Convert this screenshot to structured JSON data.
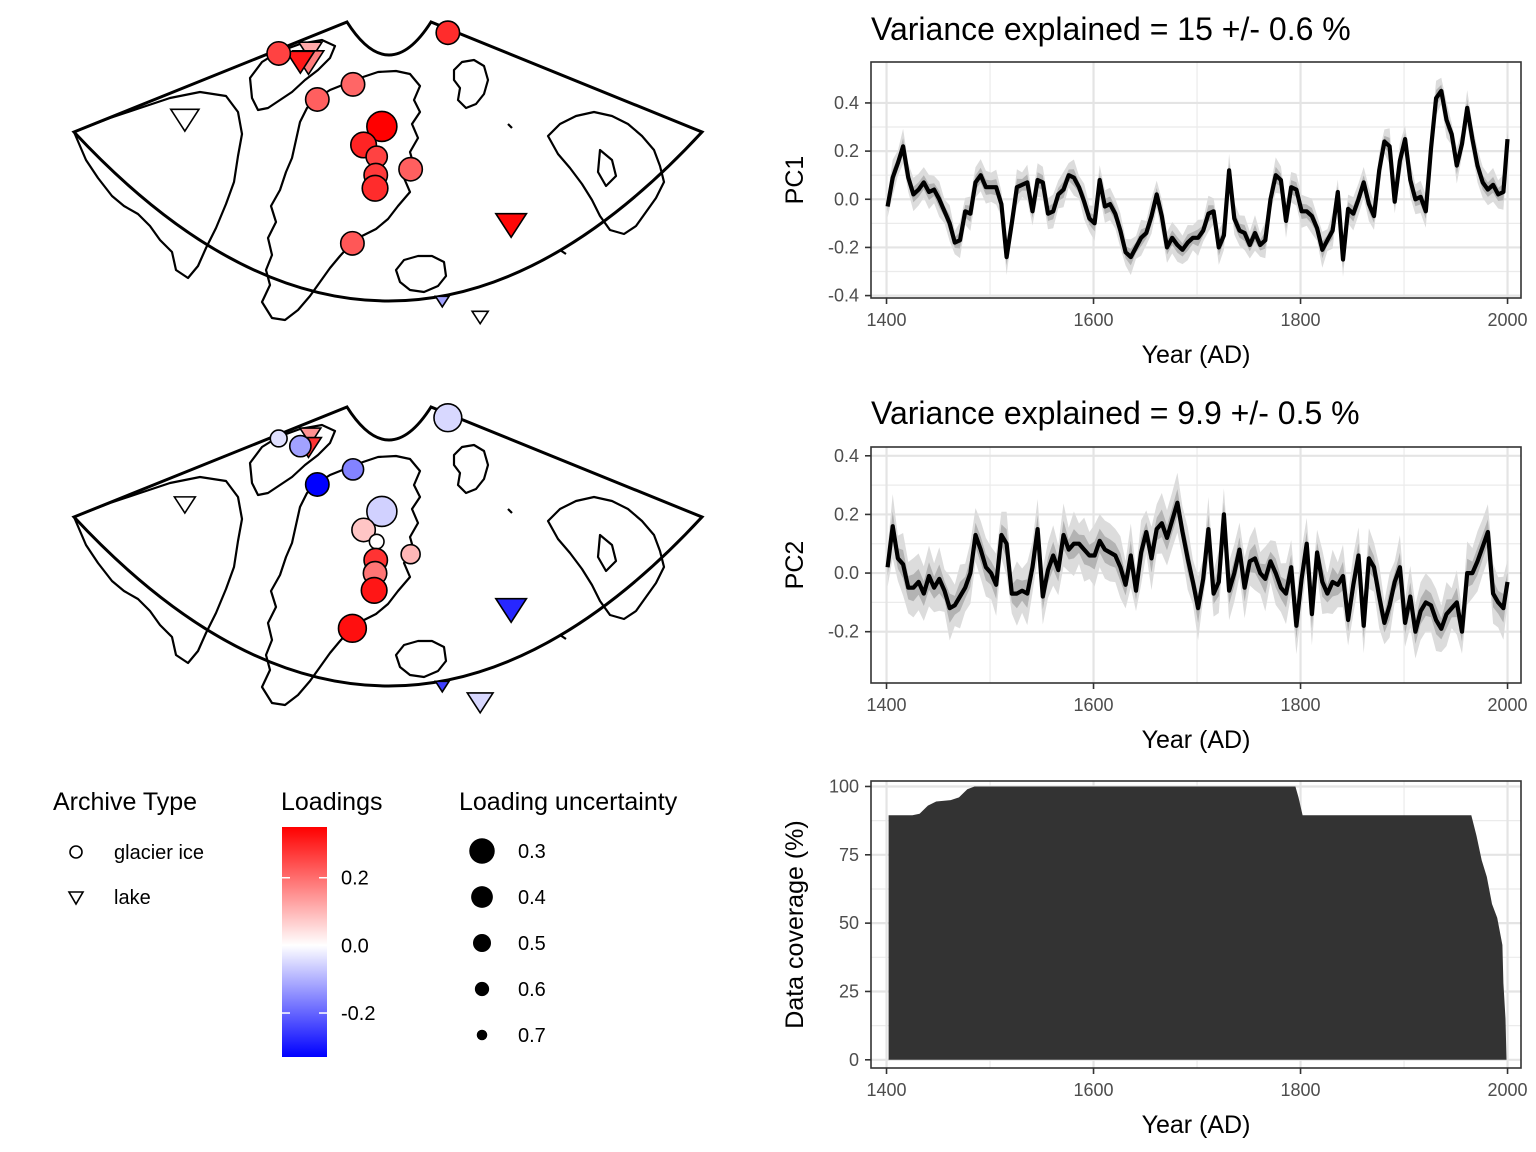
{
  "maps": [
    {
      "sites": [
        {
          "type": "lake",
          "loading": 0.12,
          "unc": 0.5,
          "lon": -71.5,
          "lat": 78.6
        },
        {
          "type": "lake",
          "loading": 0.18,
          "unc": 0.35,
          "lon": -70,
          "lat": 77.8
        },
        {
          "type": "lake",
          "loading": 0.32,
          "unc": 0.4,
          "lon": -72.5,
          "lat": 77.5
        },
        {
          "type": "glacier ice",
          "loading": 0.26,
          "unc": 0.45,
          "lon": -80,
          "lat": 77
        },
        {
          "type": "glacier ice",
          "loading": 0.22,
          "unc": 0.45,
          "lon": -62,
          "lat": 75.5
        },
        {
          "type": "glacier ice",
          "loading": 0.21,
          "unc": 0.45,
          "lon": -52.5,
          "lat": 77.4
        },
        {
          "type": "glacier ice",
          "loading": 0.35,
          "unc": 0.3,
          "lon": -42,
          "lat": 74.5
        },
        {
          "type": "glacier ice",
          "loading": 0.3,
          "unc": 0.4,
          "lon": -46.5,
          "lat": 73
        },
        {
          "type": "glacier ice",
          "loading": 0.26,
          "unc": 0.5,
          "lon": -43,
          "lat": 72.2
        },
        {
          "type": "glacier ice",
          "loading": 0.27,
          "unc": 0.45,
          "lon": -43,
          "lat": 70.8
        },
        {
          "type": "glacier ice",
          "loading": 0.29,
          "unc": 0.4,
          "lon": -43,
          "lat": 69.8
        },
        {
          "type": "glacier ice",
          "loading": 0.22,
          "unc": 0.45,
          "lon": -35,
          "lat": 71.2
        },
        {
          "type": "glacier ice",
          "loading": 0.23,
          "unc": 0.45,
          "lon": -46.5,
          "lat": 65.5
        },
        {
          "type": "glacier ice",
          "loading": 0.29,
          "unc": 0.45,
          "lon": -12,
          "lat": 80.5
        },
        {
          "type": "lake",
          "loading": 0.34,
          "unc": 0.35,
          "lon": -18,
          "lat": 65.3
        },
        {
          "type": "lake",
          "loading": 0.0,
          "unc": 0.4,
          "lon": -86,
          "lat": 68.5
        },
        {
          "type": "lake",
          "loading": -0.12,
          "unc": 0.7,
          "lon": -32,
          "lat": 61
        },
        {
          "type": "lake",
          "loading": 0.0,
          "unc": 0.65,
          "lon": -27,
          "lat": 59.3
        }
      ]
    },
    {
      "sites": [
        {
          "type": "lake",
          "loading": 0.15,
          "unc": 0.55,
          "lon": -71.5,
          "lat": 78.6
        },
        {
          "type": "lake",
          "loading": 0.28,
          "unc": 0.45,
          "lon": -70,
          "lat": 77.8
        },
        {
          "type": "glacier ice",
          "loading": -0.12,
          "unc": 0.5,
          "lon": -72.5,
          "lat": 77.5
        },
        {
          "type": "glacier ice",
          "loading": -0.04,
          "unc": 0.6,
          "lon": -80,
          "lat": 77
        },
        {
          "type": "glacier ice",
          "loading": -0.36,
          "unc": 0.45,
          "lon": -62,
          "lat": 75.5
        },
        {
          "type": "glacier ice",
          "loading": -0.05,
          "unc": 0.35,
          "lon": -12,
          "lat": 80.5
        },
        {
          "type": "glacier ice",
          "loading": -0.16,
          "unc": 0.5,
          "lon": -52.5,
          "lat": 77.4
        },
        {
          "type": "glacier ice",
          "loading": -0.06,
          "unc": 0.3,
          "lon": -42,
          "lat": 74.5
        },
        {
          "type": "glacier ice",
          "loading": 0.08,
          "unc": 0.45,
          "lon": -46.5,
          "lat": 73
        },
        {
          "type": "glacier ice",
          "loading": 0.0,
          "unc": 0.65,
          "lon": -43,
          "lat": 72.2
        },
        {
          "type": "glacier ice",
          "loading": 0.28,
          "unc": 0.45,
          "lon": -43,
          "lat": 70.8
        },
        {
          "type": "glacier ice",
          "loading": 0.19,
          "unc": 0.45,
          "lon": -43,
          "lat": 69.8
        },
        {
          "type": "glacier ice",
          "loading": 0.32,
          "unc": 0.4,
          "lon": -43,
          "lat": 68.5
        },
        {
          "type": "glacier ice",
          "loading": 0.1,
          "unc": 0.55,
          "lon": -35,
          "lat": 71.2
        },
        {
          "type": "glacier ice",
          "loading": 0.33,
          "unc": 0.35,
          "lon": -46.5,
          "lat": 65.5
        },
        {
          "type": "lake",
          "loading": -0.28,
          "unc": 0.35,
          "lon": -18,
          "lat": 65.3
        },
        {
          "type": "lake",
          "loading": 0.0,
          "unc": 0.55,
          "lon": -86,
          "lat": 68.5
        },
        {
          "type": "lake",
          "loading": -0.25,
          "unc": 0.7,
          "lon": -32,
          "lat": 61
        },
        {
          "type": "lake",
          "loading": -0.05,
          "unc": 0.45,
          "lon": -27,
          "lat": 59.3
        }
      ]
    }
  ],
  "legend": {
    "archive_title": "Archive Type",
    "archive_items": [
      {
        "label": "glacier ice",
        "shape": "circle"
      },
      {
        "label": "lake",
        "shape": "triangle-down"
      }
    ],
    "loadings_title": "Loadings",
    "loadings_ticks": [
      {
        "value": 0.2,
        "label": "0.2"
      },
      {
        "value": 0.0,
        "label": "0.0"
      },
      {
        "value": -0.2,
        "label": "-0.2"
      }
    ],
    "loadings_range": [
      -0.33,
      0.35
    ],
    "colors": {
      "low": "#0000ff",
      "mid": "#ffffff",
      "high": "#ff0000"
    },
    "uncertainty_title": "Loading uncertainty",
    "uncertainty_items": [
      {
        "value": 0.3,
        "label": "0.3"
      },
      {
        "value": 0.4,
        "label": "0.4"
      },
      {
        "value": 0.5,
        "label": "0.5"
      },
      {
        "value": 0.6,
        "label": "0.6"
      },
      {
        "value": 0.7,
        "label": "0.7"
      }
    ]
  },
  "chart_data": [
    {
      "type": "line",
      "title": "Variance explained = 15 +/- 0.6 %",
      "xlabel": "Year (AD)",
      "ylabel": "PC1",
      "xlim": [
        1385,
        2013
      ],
      "ylim": [
        -0.41,
        0.57
      ],
      "xticks": [
        {
          "v": 1400,
          "l": "1400"
        },
        {
          "v": 1600,
          "l": "1600"
        },
        {
          "v": 1800,
          "l": "1800"
        },
        {
          "v": 2000,
          "l": "2000"
        }
      ],
      "yticks": [
        {
          "v": -0.4,
          "l": "-0.4"
        },
        {
          "v": -0.2,
          "l": "-0.2"
        },
        {
          "v": 0.0,
          "l": "0.0"
        },
        {
          "v": 0.2,
          "l": "0.2"
        },
        {
          "v": 0.4,
          "l": "0.4"
        }
      ],
      "grid": true,
      "x": [
        1401,
        1406,
        1411,
        1416,
        1421,
        1426,
        1431,
        1436,
        1441,
        1446,
        1451,
        1456,
        1461,
        1466,
        1471,
        1476,
        1481,
        1486,
        1491,
        1496,
        1501,
        1506,
        1511,
        1516,
        1521,
        1526,
        1531,
        1536,
        1541,
        1546,
        1551,
        1556,
        1561,
        1566,
        1571,
        1576,
        1581,
        1586,
        1591,
        1596,
        1601,
        1606,
        1611,
        1616,
        1621,
        1626,
        1631,
        1636,
        1641,
        1646,
        1651,
        1656,
        1661,
        1666,
        1671,
        1676,
        1681,
        1686,
        1691,
        1696,
        1701,
        1706,
        1711,
        1716,
        1721,
        1726,
        1731,
        1736,
        1741,
        1746,
        1751,
        1756,
        1761,
        1766,
        1771,
        1776,
        1781,
        1786,
        1791,
        1796,
        1801,
        1806,
        1811,
        1816,
        1821,
        1826,
        1831,
        1836,
        1841,
        1846,
        1851,
        1856,
        1861,
        1866,
        1871,
        1876,
        1881,
        1886,
        1891,
        1896,
        1901,
        1906,
        1911,
        1916,
        1921,
        1926,
        1931,
        1936,
        1941,
        1946,
        1951,
        1956,
        1961,
        1966,
        1971,
        1976,
        1981,
        1986,
        1991,
        1996,
        2000
      ],
      "y": [
        -0.03,
        0.09,
        0.15,
        0.22,
        0.09,
        0.02,
        0.04,
        0.07,
        0.03,
        0.04,
        0.0,
        -0.05,
        -0.1,
        -0.18,
        -0.17,
        -0.05,
        -0.06,
        0.07,
        0.1,
        0.05,
        0.05,
        0.05,
        -0.02,
        -0.24,
        -0.1,
        0.05,
        0.06,
        0.07,
        -0.05,
        0.08,
        0.07,
        -0.06,
        -0.05,
        0.02,
        0.04,
        0.1,
        0.09,
        0.05,
        -0.01,
        -0.08,
        -0.1,
        0.08,
        -0.03,
        -0.02,
        -0.06,
        -0.13,
        -0.22,
        -0.24,
        -0.2,
        -0.16,
        -0.14,
        -0.07,
        0.02,
        -0.07,
        -0.2,
        -0.16,
        -0.19,
        -0.21,
        -0.18,
        -0.16,
        -0.16,
        -0.13,
        -0.06,
        -0.05,
        -0.2,
        -0.15,
        0.12,
        -0.08,
        -0.13,
        -0.14,
        -0.19,
        -0.14,
        -0.19,
        -0.17,
        0.0,
        0.1,
        0.08,
        -0.09,
        0.05,
        0.04,
        -0.05,
        -0.05,
        -0.07,
        -0.12,
        -0.21,
        -0.17,
        -0.13,
        0.03,
        -0.25,
        -0.04,
        -0.06,
        0.0,
        0.07,
        -0.02,
        -0.07,
        0.12,
        0.24,
        0.22,
        -0.01,
        0.16,
        0.25,
        0.08,
        0.0,
        0.01,
        -0.05,
        0.21,
        0.42,
        0.45,
        0.33,
        0.27,
        0.14,
        0.23,
        0.38,
        0.25,
        0.14,
        0.07,
        0.04,
        0.06,
        0.02,
        0.03,
        0.25
      ]
    },
    {
      "type": "line",
      "title": "Variance explained = 9.9 +/- 0.5 %",
      "xlabel": "Year (AD)",
      "ylabel": "PC2",
      "xlim": [
        1385,
        2013
      ],
      "ylim": [
        -0.375,
        0.43
      ],
      "xticks": [
        {
          "v": 1400,
          "l": "1400"
        },
        {
          "v": 1600,
          "l": "1600"
        },
        {
          "v": 1800,
          "l": "1800"
        },
        {
          "v": 2000,
          "l": "2000"
        }
      ],
      "yticks": [
        {
          "v": -0.2,
          "l": "-0.2"
        },
        {
          "v": 0.0,
          "l": "0.0"
        },
        {
          "v": 0.2,
          "l": "0.2"
        },
        {
          "v": 0.4,
          "l": "0.4"
        }
      ],
      "grid": true,
      "x": [
        1401,
        1406,
        1411,
        1416,
        1421,
        1426,
        1431,
        1436,
        1441,
        1446,
        1451,
        1456,
        1461,
        1466,
        1471,
        1476,
        1481,
        1486,
        1491,
        1496,
        1501,
        1506,
        1511,
        1516,
        1521,
        1526,
        1531,
        1536,
        1541,
        1546,
        1551,
        1556,
        1561,
        1566,
        1571,
        1576,
        1581,
        1586,
        1591,
        1596,
        1601,
        1606,
        1611,
        1616,
        1621,
        1626,
        1631,
        1636,
        1641,
        1646,
        1651,
        1656,
        1661,
        1666,
        1671,
        1676,
        1681,
        1686,
        1691,
        1696,
        1701,
        1706,
        1711,
        1716,
        1721,
        1726,
        1731,
        1736,
        1741,
        1746,
        1751,
        1756,
        1761,
        1766,
        1771,
        1776,
        1781,
        1786,
        1791,
        1796,
        1801,
        1806,
        1811,
        1816,
        1821,
        1826,
        1831,
        1836,
        1841,
        1846,
        1851,
        1856,
        1861,
        1866,
        1871,
        1876,
        1881,
        1886,
        1891,
        1896,
        1901,
        1906,
        1911,
        1916,
        1921,
        1926,
        1931,
        1936,
        1941,
        1946,
        1951,
        1956,
        1961,
        1966,
        1971,
        1976,
        1981,
        1986,
        1991,
        1996,
        2000
      ],
      "y": [
        0.02,
        0.16,
        0.05,
        0.03,
        -0.05,
        -0.05,
        -0.03,
        -0.07,
        -0.01,
        -0.05,
        -0.02,
        -0.06,
        -0.12,
        -0.11,
        -0.08,
        -0.05,
        0.0,
        0.13,
        0.08,
        0.02,
        0.0,
        -0.04,
        0.13,
        0.1,
        -0.07,
        -0.07,
        -0.06,
        -0.07,
        0.02,
        0.15,
        -0.08,
        0.01,
        0.06,
        0.01,
        0.13,
        0.08,
        0.1,
        0.1,
        0.08,
        0.06,
        0.06,
        0.11,
        0.08,
        0.07,
        0.06,
        0.02,
        -0.04,
        0.06,
        -0.06,
        0.07,
        0.14,
        0.05,
        0.15,
        0.17,
        0.12,
        0.18,
        0.24,
        0.14,
        0.05,
        -0.03,
        -0.12,
        -0.02,
        0.15,
        -0.07,
        -0.03,
        0.2,
        -0.06,
        0.0,
        0.08,
        -0.05,
        0.04,
        0.05,
        0.0,
        -0.02,
        0.04,
        0.0,
        -0.05,
        -0.07,
        0.02,
        -0.18,
        -0.02,
        0.1,
        -0.14,
        0.07,
        -0.03,
        -0.07,
        -0.03,
        -0.04,
        -0.01,
        -0.16,
        -0.04,
        0.06,
        -0.18,
        0.05,
        0.02,
        -0.08,
        -0.17,
        -0.11,
        -0.03,
        0.02,
        -0.17,
        -0.08,
        -0.2,
        -0.13,
        -0.1,
        -0.11,
        -0.16,
        -0.19,
        -0.14,
        -0.12,
        -0.1,
        -0.2,
        0.0,
        0.0,
        0.04,
        0.09,
        0.14,
        -0.07,
        -0.1,
        -0.12,
        -0.03
      ]
    },
    {
      "type": "area",
      "title": "",
      "xlabel": "Year (AD)",
      "ylabel": "Data coverage (%)",
      "xlim": [
        1385,
        2013
      ],
      "ylim": [
        -3,
        102
      ],
      "xticks": [
        {
          "v": 1400,
          "l": "1400"
        },
        {
          "v": 1600,
          "l": "1600"
        },
        {
          "v": 1800,
          "l": "1800"
        },
        {
          "v": 2000,
          "l": "2000"
        }
      ],
      "yticks": [
        {
          "v": 0,
          "l": "0"
        },
        {
          "v": 25,
          "l": "25"
        },
        {
          "v": 50,
          "l": "50"
        },
        {
          "v": 75,
          "l": "75"
        },
        {
          "v": 100,
          "l": "100"
        }
      ],
      "grid": true,
      "fill_color": "#333333",
      "x": [
        1402,
        1425,
        1432,
        1440,
        1448,
        1462,
        1470,
        1478,
        1485,
        1700,
        1795,
        1798,
        1802,
        1850,
        1900,
        1950,
        1965,
        1970,
        1975,
        1980,
        1985,
        1990,
        1995,
        1996,
        1998,
        1999
      ],
      "y": [
        89.5,
        89.5,
        90,
        93,
        94.5,
        95,
        96,
        99,
        100,
        100,
        100,
        96,
        89.5,
        89.5,
        89.5,
        89.5,
        89.5,
        82,
        73,
        67,
        57,
        52,
        42,
        28,
        15,
        0
      ]
    }
  ]
}
